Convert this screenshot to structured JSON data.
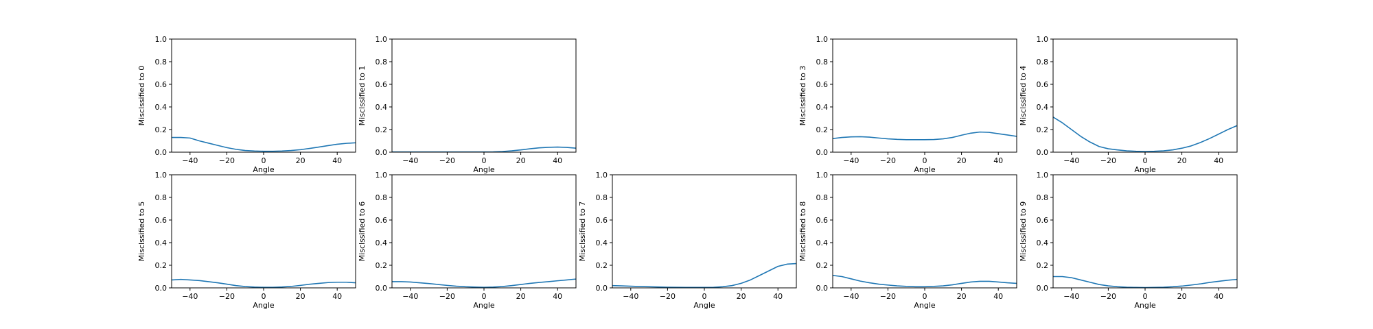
{
  "figure": {
    "line_color": "#1f77b4",
    "axis_color": "#000000",
    "background": "#ffffff"
  },
  "chart_data": [
    {
      "type": "line",
      "xlabel": "Angle",
      "ylabel": "Misclssified to 0",
      "xlim": [
        -50,
        50
      ],
      "ylim": [
        0,
        1
      ],
      "xticks": [
        -40,
        -20,
        0,
        20,
        40
      ],
      "xtick_labels": [
        "−40",
        "−20",
        "0",
        "20",
        "40"
      ],
      "yticks": [
        0,
        0.2,
        0.4,
        0.6,
        0.8,
        1.0
      ],
      "ytick_labels": [
        "0.0",
        "0.2",
        "0.4",
        "0.6",
        "0.8",
        "1.0"
      ],
      "x": [
        -50,
        -45,
        -40,
        -35,
        -30,
        -25,
        -20,
        -15,
        -10,
        -5,
        0,
        5,
        10,
        15,
        20,
        25,
        30,
        35,
        40,
        45,
        50
      ],
      "y": [
        0.13,
        0.13,
        0.125,
        0.1,
        0.08,
        0.06,
        0.04,
        0.025,
        0.015,
        0.01,
        0.008,
        0.008,
        0.01,
        0.015,
        0.022,
        0.033,
        0.045,
        0.058,
        0.07,
        0.078,
        0.083
      ]
    },
    {
      "type": "line",
      "xlabel": "Angle",
      "ylabel": "Misclssified to 1",
      "xlim": [
        -50,
        50
      ],
      "ylim": [
        0,
        1
      ],
      "xticks": [
        -40,
        -20,
        0,
        20,
        40
      ],
      "xtick_labels": [
        "−40",
        "−20",
        "0",
        "20",
        "40"
      ],
      "yticks": [
        0,
        0.2,
        0.4,
        0.6,
        0.8,
        1.0
      ],
      "ytick_labels": [
        "0.0",
        "0.2",
        "0.4",
        "0.6",
        "0.8",
        "1.0"
      ],
      "x": [
        -50,
        -45,
        -40,
        -35,
        -30,
        -25,
        -20,
        -15,
        -10,
        -5,
        0,
        5,
        10,
        15,
        20,
        25,
        30,
        35,
        40,
        45,
        50
      ],
      "y": [
        0.002,
        0.002,
        0.002,
        0.002,
        0.002,
        0.002,
        0.002,
        0.002,
        0.002,
        0.002,
        0.002,
        0.003,
        0.006,
        0.012,
        0.02,
        0.03,
        0.038,
        0.043,
        0.045,
        0.042,
        0.035
      ]
    },
    {
      "type": "line",
      "xlabel": "Angle",
      "ylabel": "Misclssified to 3",
      "xlim": [
        -50,
        50
      ],
      "ylim": [
        0,
        1
      ],
      "xticks": [
        -40,
        -20,
        0,
        20,
        40
      ],
      "xtick_labels": [
        "−40",
        "−20",
        "0",
        "20",
        "40"
      ],
      "yticks": [
        0,
        0.2,
        0.4,
        0.6,
        0.8,
        1.0
      ],
      "ytick_labels": [
        "0.0",
        "0.2",
        "0.4",
        "0.6",
        "0.8",
        "1.0"
      ],
      "x": [
        -50,
        -45,
        -40,
        -35,
        -30,
        -25,
        -20,
        -15,
        -10,
        -5,
        0,
        5,
        10,
        15,
        20,
        25,
        30,
        35,
        40,
        45,
        50
      ],
      "y": [
        0.12,
        0.13,
        0.135,
        0.137,
        0.133,
        0.125,
        0.118,
        0.113,
        0.11,
        0.11,
        0.11,
        0.112,
        0.118,
        0.13,
        0.15,
        0.168,
        0.178,
        0.175,
        0.163,
        0.152,
        0.14
      ]
    },
    {
      "type": "line",
      "xlabel": "Angle",
      "ylabel": "Misclssified to 4",
      "xlim": [
        -50,
        50
      ],
      "ylim": [
        0,
        1
      ],
      "xticks": [
        -40,
        -20,
        0,
        20,
        40
      ],
      "xtick_labels": [
        "−40",
        "−20",
        "0",
        "20",
        "40"
      ],
      "yticks": [
        0,
        0.2,
        0.4,
        0.6,
        0.8,
        1.0
      ],
      "ytick_labels": [
        "0.0",
        "0.2",
        "0.4",
        "0.6",
        "0.8",
        "1.0"
      ],
      "x": [
        -50,
        -45,
        -40,
        -35,
        -30,
        -25,
        -20,
        -15,
        -10,
        -5,
        0,
        5,
        10,
        15,
        20,
        25,
        30,
        35,
        40,
        45,
        50
      ],
      "y": [
        0.31,
        0.26,
        0.2,
        0.14,
        0.09,
        0.05,
        0.03,
        0.02,
        0.012,
        0.008,
        0.006,
        0.008,
        0.012,
        0.02,
        0.035,
        0.055,
        0.085,
        0.12,
        0.16,
        0.2,
        0.235
      ]
    },
    {
      "type": "line",
      "xlabel": "Angle",
      "ylabel": "Misclssified to 5",
      "xlim": [
        -50,
        50
      ],
      "ylim": [
        0,
        1
      ],
      "xticks": [
        -40,
        -20,
        0,
        20,
        40
      ],
      "xtick_labels": [
        "−40",
        "−20",
        "0",
        "20",
        "40"
      ],
      "yticks": [
        0,
        0.2,
        0.4,
        0.6,
        0.8,
        1.0
      ],
      "ytick_labels": [
        "0.0",
        "0.2",
        "0.4",
        "0.6",
        "0.8",
        "1.0"
      ],
      "x": [
        -50,
        -45,
        -40,
        -35,
        -30,
        -25,
        -20,
        -15,
        -10,
        -5,
        0,
        5,
        10,
        15,
        20,
        25,
        30,
        35,
        40,
        45,
        50
      ],
      "y": [
        0.07,
        0.075,
        0.07,
        0.065,
        0.055,
        0.045,
        0.033,
        0.02,
        0.012,
        0.007,
        0.005,
        0.005,
        0.008,
        0.013,
        0.022,
        0.032,
        0.04,
        0.047,
        0.05,
        0.05,
        0.045
      ]
    },
    {
      "type": "line",
      "xlabel": "Angle",
      "ylabel": "Misclssified to 6",
      "xlim": [
        -50,
        50
      ],
      "ylim": [
        0,
        1
      ],
      "xticks": [
        -40,
        -20,
        0,
        20,
        40
      ],
      "xtick_labels": [
        "−40",
        "−20",
        "0",
        "20",
        "40"
      ],
      "yticks": [
        0,
        0.2,
        0.4,
        0.6,
        0.8,
        1.0
      ],
      "ytick_labels": [
        "0.0",
        "0.2",
        "0.4",
        "0.6",
        "0.8",
        "1.0"
      ],
      "x": [
        -50,
        -45,
        -40,
        -35,
        -30,
        -25,
        -20,
        -15,
        -10,
        -5,
        0,
        5,
        10,
        15,
        20,
        25,
        30,
        35,
        40,
        45,
        50
      ],
      "y": [
        0.055,
        0.055,
        0.052,
        0.045,
        0.038,
        0.03,
        0.022,
        0.015,
        0.01,
        0.007,
        0.005,
        0.007,
        0.012,
        0.02,
        0.03,
        0.04,
        0.048,
        0.055,
        0.063,
        0.07,
        0.078
      ]
    },
    {
      "type": "line",
      "xlabel": "Angle",
      "ylabel": "Misclssified to 7",
      "xlim": [
        -50,
        50
      ],
      "ylim": [
        0,
        1
      ],
      "xticks": [
        -40,
        -20,
        0,
        20,
        40
      ],
      "xtick_labels": [
        "−40",
        "−20",
        "0",
        "20",
        "40"
      ],
      "yticks": [
        0,
        0.2,
        0.4,
        0.6,
        0.8,
        1.0
      ],
      "ytick_labels": [
        "0.0",
        "0.2",
        "0.4",
        "0.6",
        "0.8",
        "1.0"
      ],
      "x": [
        -50,
        -45,
        -40,
        -35,
        -30,
        -25,
        -20,
        -15,
        -10,
        -5,
        0,
        5,
        10,
        15,
        20,
        25,
        30,
        35,
        40,
        45,
        50
      ],
      "y": [
        0.02,
        0.018,
        0.015,
        0.012,
        0.01,
        0.008,
        0.006,
        0.005,
        0.004,
        0.004,
        0.004,
        0.005,
        0.01,
        0.02,
        0.04,
        0.07,
        0.11,
        0.15,
        0.19,
        0.21,
        0.215
      ]
    },
    {
      "type": "line",
      "xlabel": "Angle",
      "ylabel": "Misclssified to 8",
      "xlim": [
        -50,
        50
      ],
      "ylim": [
        0,
        1
      ],
      "xticks": [
        -40,
        -20,
        0,
        20,
        40
      ],
      "xtick_labels": [
        "−40",
        "−20",
        "0",
        "20",
        "40"
      ],
      "yticks": [
        0,
        0.2,
        0.4,
        0.6,
        0.8,
        1.0
      ],
      "ytick_labels": [
        "0.0",
        "0.2",
        "0.4",
        "0.6",
        "0.8",
        "1.0"
      ],
      "x": [
        -50,
        -45,
        -40,
        -35,
        -30,
        -25,
        -20,
        -15,
        -10,
        -5,
        0,
        5,
        10,
        15,
        20,
        25,
        30,
        35,
        40,
        45,
        50
      ],
      "y": [
        0.11,
        0.1,
        0.08,
        0.06,
        0.045,
        0.033,
        0.025,
        0.018,
        0.013,
        0.01,
        0.01,
        0.013,
        0.018,
        0.027,
        0.04,
        0.052,
        0.058,
        0.058,
        0.052,
        0.045,
        0.04
      ]
    },
    {
      "type": "line",
      "xlabel": "Angle",
      "ylabel": "Misclssified to 9",
      "xlim": [
        -50,
        50
      ],
      "ylim": [
        0,
        1
      ],
      "xticks": [
        -40,
        -20,
        0,
        20,
        40
      ],
      "xtick_labels": [
        "−40",
        "−20",
        "0",
        "20",
        "40"
      ],
      "yticks": [
        0,
        0.2,
        0.4,
        0.6,
        0.8,
        1.0
      ],
      "ytick_labels": [
        "0.0",
        "0.2",
        "0.4",
        "0.6",
        "0.8",
        "1.0"
      ],
      "x": [
        -50,
        -45,
        -40,
        -35,
        -30,
        -25,
        -20,
        -15,
        -10,
        -5,
        0,
        5,
        10,
        15,
        20,
        25,
        30,
        35,
        40,
        45,
        50
      ],
      "y": [
        0.1,
        0.1,
        0.09,
        0.07,
        0.05,
        0.03,
        0.018,
        0.01,
        0.006,
        0.004,
        0.003,
        0.004,
        0.006,
        0.01,
        0.016,
        0.025,
        0.035,
        0.048,
        0.058,
        0.068,
        0.075
      ]
    }
  ]
}
